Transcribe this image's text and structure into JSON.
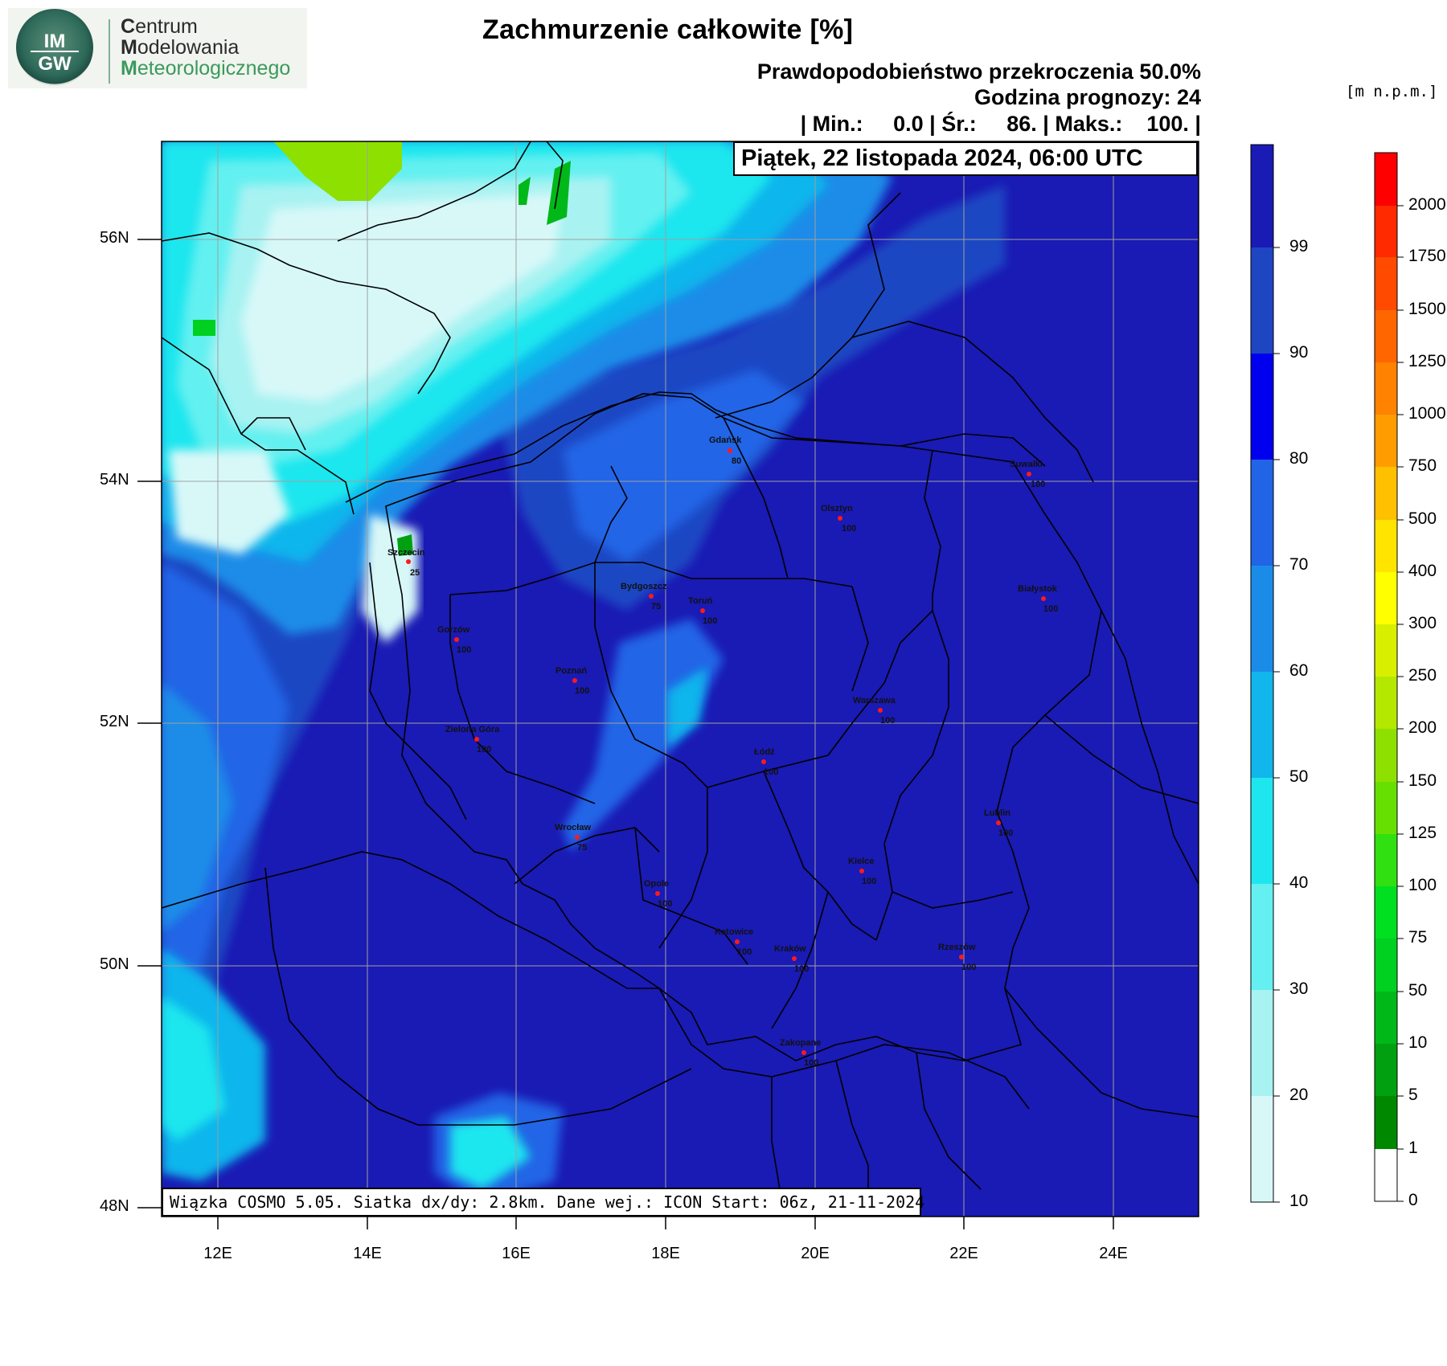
{
  "logo": {
    "line1_first": "C",
    "line1_rest": "entrum",
    "line2_first": "M",
    "line2_rest": "odelowania",
    "line3_first": "M",
    "line3_rest": "eteorologicznego",
    "seal_top": "IM",
    "seal_bottom": "GW"
  },
  "header": {
    "title": "Zachmurzenie całkowite [%]",
    "probability": "Prawdopodobieństwo przekroczenia 50.0%",
    "forecast_hour": "Godzina prognozy: 24",
    "stats": "| Min.:     0.0 | Śr.:     86. | Maks.:    100. |"
  },
  "date_box": "Piątek, 22 listopada 2024, 06:00 UTC",
  "footer_box": "Wiązka COSMO 5.05. Siatka dx/dy: 2.8km. Dane wej.: ICON Start: 06z, 21-11-2024",
  "axes": {
    "lat_labels": [
      "56N",
      "54N",
      "52N",
      "50N",
      "48N"
    ],
    "lon_labels": [
      "12E",
      "14E",
      "16E",
      "18E",
      "20E",
      "22E",
      "24E"
    ]
  },
  "cities": [
    {
      "name": "Gdańsk",
      "value": "80"
    },
    {
      "name": "Suwałki",
      "value": "100"
    },
    {
      "name": "Olsztyn",
      "value": "100"
    },
    {
      "name": "Szczecin",
      "value": "25"
    },
    {
      "name": "Bydgoszcz",
      "value": "75"
    },
    {
      "name": "Toruń",
      "value": "100"
    },
    {
      "name": "Białystok",
      "value": "100"
    },
    {
      "name": "Gorzów",
      "value": "100"
    },
    {
      "name": "Poznań",
      "value": "100"
    },
    {
      "name": "Warszawa",
      "value": "100"
    },
    {
      "name": "Zielona Góra",
      "value": "100"
    },
    {
      "name": "Łódź",
      "value": "100"
    },
    {
      "name": "Wrocław",
      "value": "75"
    },
    {
      "name": "Lublin",
      "value": "100"
    },
    {
      "name": "Kielce",
      "value": "100"
    },
    {
      "name": "Opole",
      "value": "100"
    },
    {
      "name": "Katowice",
      "value": "100"
    },
    {
      "name": "Kraków",
      "value": "100"
    },
    {
      "name": "Rzeszów",
      "value": "100"
    },
    {
      "name": "Zakopane",
      "value": "100"
    }
  ],
  "cloud_colorbar": {
    "labels": [
      "99",
      "90",
      "80",
      "70",
      "60",
      "50",
      "40",
      "30",
      "20",
      "10"
    ],
    "colors": [
      "#1a1ab4",
      "#1e46c3",
      "#0000ee",
      "#2165e6",
      "#1a8ce8",
      "#11b6ec",
      "#1ee6ee",
      "#64f0f0",
      "#a8f2f2",
      "#d8f8f8"
    ]
  },
  "terrain_colorbar": {
    "units": "[m n.p.m.]",
    "labels": [
      "2000",
      "1750",
      "1500",
      "1250",
      "1000",
      "750",
      "500",
      "400",
      "300",
      "250",
      "200",
      "150",
      "125",
      "100",
      "75",
      "50",
      "10",
      "5",
      "1",
      "0"
    ],
    "colors": [
      "#ff0000",
      "#ff2a00",
      "#ff4a00",
      "#ff6600",
      "#ff8200",
      "#ff9c00",
      "#ffc000",
      "#ffe400",
      "#ffff00",
      "#d8f000",
      "#b4e800",
      "#8ee000",
      "#66e000",
      "#30e010",
      "#00e020",
      "#00d020",
      "#00b818",
      "#00a010",
      "#008800",
      "#006a00",
      "#ffffff"
    ]
  }
}
